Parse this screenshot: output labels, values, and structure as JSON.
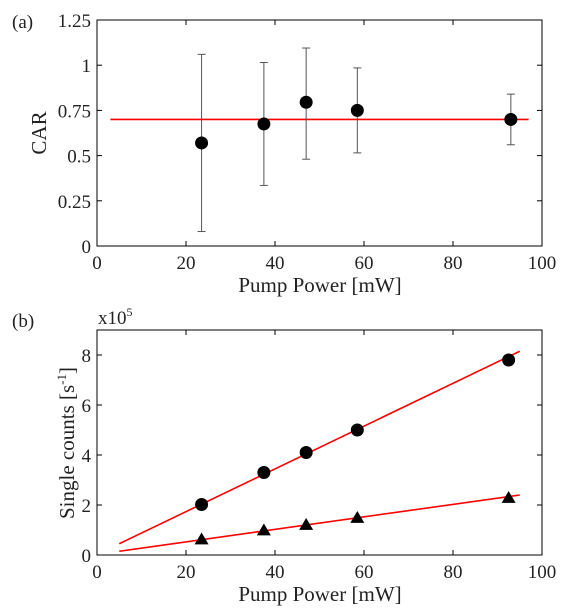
{
  "chart_data": [
    {
      "type": "scatter",
      "panel_label": "(a)",
      "xlabel": "Pump Power [mW]",
      "ylabel": "CAR",
      "xlim": [
        0,
        100
      ],
      "ylim": [
        0,
        1.25
      ],
      "xticks": [
        "0",
        "20",
        "40",
        "60",
        "80",
        "100"
      ],
      "yticks": [
        "0",
        "0.25",
        "0.5",
        "0.75",
        "1",
        "1.25"
      ],
      "grid": false,
      "points": [
        {
          "x": 23.5,
          "y": 0.57,
          "err_low": 0.08,
          "err_high": 1.06
        },
        {
          "x": 37.5,
          "y": 0.675,
          "err_low": 0.335,
          "err_high": 1.015
        },
        {
          "x": 47,
          "y": 0.795,
          "err_low": 0.48,
          "err_high": 1.095
        },
        {
          "x": 58.5,
          "y": 0.75,
          "err_low": 0.515,
          "err_high": 0.985
        },
        {
          "x": 93,
          "y": 0.7,
          "err_low": 0.56,
          "err_high": 0.84
        }
      ],
      "fit_lines": [
        {
          "x": [
            3,
            97
          ],
          "y": [
            0.7,
            0.7
          ]
        }
      ],
      "marker_color": "#000000",
      "line_color": "#ff0000"
    },
    {
      "type": "scatter",
      "panel_label": "(b)",
      "xlabel": "Pump Power [mW]",
      "ylabel": "Single counts [s",
      "ylabel_sup": "-1",
      "ylabel_close": "]",
      "scale_label": "x10",
      "scale_exp": "5",
      "xlim": [
        0,
        100
      ],
      "ylim": [
        0,
        9
      ],
      "xticks": [
        "0",
        "20",
        "40",
        "60",
        "80",
        "100"
      ],
      "yticks": [
        "0",
        "2",
        "4",
        "6",
        "8"
      ],
      "grid": false,
      "series": [
        {
          "marker": "circle",
          "x": [
            23.5,
            37.5,
            47,
            58.5,
            92.5
          ],
          "y": [
            2.02,
            3.3,
            4.1,
            5.0,
            7.8
          ]
        },
        {
          "marker": "triangle",
          "x": [
            23.5,
            37.5,
            47,
            58.5,
            92.5
          ],
          "y": [
            0.62,
            0.98,
            1.2,
            1.48,
            2.28
          ]
        }
      ],
      "fit_lines": [
        {
          "x": [
            5,
            95
          ],
          "y": [
            0.45,
            8.15
          ]
        },
        {
          "x": [
            5,
            95
          ],
          "y": [
            0.15,
            2.4
          ]
        }
      ],
      "marker_color": "#000000",
      "line_color": "#ff0000"
    }
  ]
}
